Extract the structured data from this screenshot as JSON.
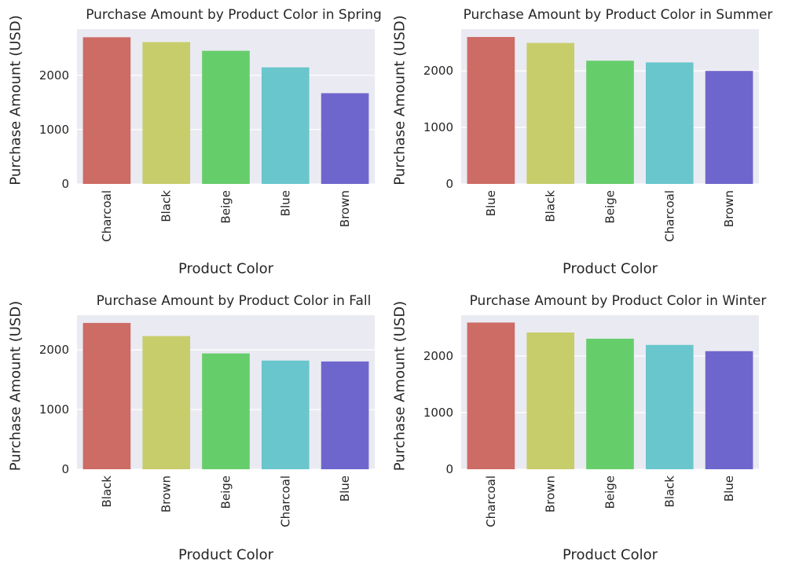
{
  "colors": {
    "plot_background": "#eaeaf2",
    "grid": "#ffffff",
    "text": "#262626",
    "bar_palette": [
      "#cd6b65",
      "#c7cd6a",
      "#66cd6b",
      "#69c6cd",
      "#6f66cd"
    ]
  },
  "chart_data": [
    {
      "type": "bar",
      "title": "Purchase Amount by Product Color in Spring",
      "xlabel": "Product Color",
      "ylabel": "Purchase Amount (USD)",
      "categories": [
        "Charcoal",
        "Black",
        "Beige",
        "Blue",
        "Brown"
      ],
      "values": [
        2700,
        2610,
        2450,
        2145,
        1670
      ],
      "ylim": [
        0,
        2850
      ],
      "yticks": [
        0,
        1000,
        2000
      ],
      "ytick_labels": [
        "0",
        "1000",
        "2000"
      ],
      "grid": true
    },
    {
      "type": "bar",
      "title": "Purchase Amount by Product Color in Summer",
      "xlabel": "Product Color",
      "ylabel": "Purchase Amount (USD)",
      "categories": [
        "Blue",
        "Black",
        "Beige",
        "Charcoal",
        "Brown"
      ],
      "values": [
        2600,
        2495,
        2180,
        2150,
        2000
      ],
      "ylim": [
        0,
        2740
      ],
      "yticks": [
        0,
        1000,
        2000
      ],
      "ytick_labels": [
        "0",
        "1000",
        "2000"
      ],
      "grid": true
    },
    {
      "type": "bar",
      "title": "Purchase Amount by Product Color in Fall",
      "xlabel": "Product Color",
      "ylabel": "Purchase Amount (USD)",
      "categories": [
        "Black",
        "Brown",
        "Beige",
        "Charcoal",
        "Blue"
      ],
      "values": [
        2450,
        2230,
        1940,
        1820,
        1805
      ],
      "ylim": [
        0,
        2580
      ],
      "yticks": [
        0,
        1000,
        2000
      ],
      "ytick_labels": [
        "0",
        "1000",
        "2000"
      ],
      "grid": true
    },
    {
      "type": "bar",
      "title": "Purchase Amount by Product Color in Winter",
      "xlabel": "Product Color",
      "ylabel": "Purchase Amount (USD)",
      "categories": [
        "Charcoal",
        "Brown",
        "Beige",
        "Black",
        "Blue"
      ],
      "values": [
        2590,
        2415,
        2305,
        2195,
        2085
      ],
      "ylim": [
        0,
        2720
      ],
      "yticks": [
        0,
        1000,
        2000
      ],
      "ytick_labels": [
        "0",
        "1000",
        "2000"
      ],
      "grid": true
    }
  ]
}
